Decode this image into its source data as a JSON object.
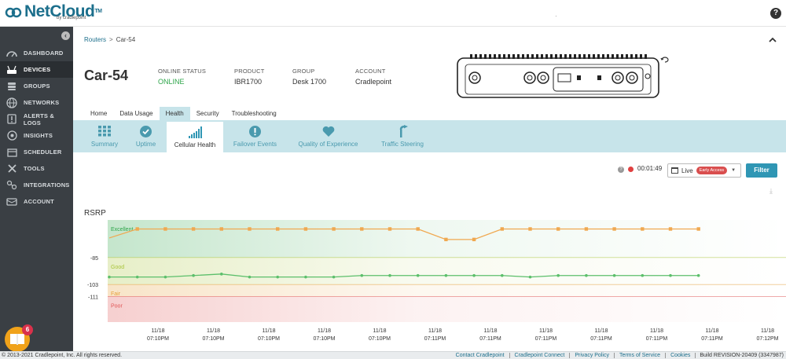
{
  "app": {
    "logo_text": "NetCloud",
    "logo_tm": "TM",
    "logo_sub": "by cradlepoint",
    "help_label": "?",
    "top_mark": "·"
  },
  "sidebar": {
    "collapse_label": "‹",
    "items": [
      {
        "label": "DASHBOARD",
        "icon": "dashboard-icon",
        "active": false
      },
      {
        "label": "DEVICES",
        "icon": "devices-icon",
        "active": true
      },
      {
        "label": "GROUPS",
        "icon": "groups-icon",
        "active": false
      },
      {
        "label": "NETWORKS",
        "icon": "networks-icon",
        "active": false
      },
      {
        "label": "ALERTS & LOGS",
        "icon": "alerts-icon",
        "active": false
      },
      {
        "label": "INSIGHTS",
        "icon": "insights-icon",
        "active": false
      },
      {
        "label": "SCHEDULER",
        "icon": "scheduler-icon",
        "active": false
      },
      {
        "label": "TOOLS",
        "icon": "tools-icon",
        "active": false
      },
      {
        "label": "INTEGRATIONS",
        "icon": "integrations-icon",
        "active": false
      },
      {
        "label": "ACCOUNT",
        "icon": "account-icon",
        "active": false
      }
    ],
    "help_badge": "6"
  },
  "breadcrumb": {
    "parent": "Routers",
    "separator": ">",
    "current": "Car-54"
  },
  "collapse_icon": "^",
  "device": {
    "name": "Car-54",
    "online_status_label": "ONLINE STATUS",
    "online_status_value": "ONLINE",
    "product_label": "PRODUCT",
    "product_value": "IBR1700",
    "group_label": "GROUP",
    "group_value": "Desk 1700",
    "account_label": "ACCOUNT",
    "account_value": "Cradlepoint",
    "status_color": "#2ea54a"
  },
  "tabs": [
    {
      "label": "Home",
      "active": false
    },
    {
      "label": "Data Usage",
      "active": false
    },
    {
      "label": "Health",
      "active": true
    },
    {
      "label": "Security",
      "active": false
    },
    {
      "label": "Troubleshooting",
      "active": false
    }
  ],
  "subtabs": [
    {
      "label": "Summary",
      "icon": "grid-icon",
      "active": false
    },
    {
      "label": "Uptime",
      "icon": "check-circle-icon",
      "active": false
    },
    {
      "label": "Cellular Health",
      "icon": "signal-bars-icon",
      "active": true
    },
    {
      "label": "Failover Events",
      "icon": "alert-circle-icon",
      "active": false
    },
    {
      "label": "Quality of Experience",
      "icon": "heart-icon",
      "active": false
    },
    {
      "label": "Traffic Steering",
      "icon": "traffic-steering-icon",
      "active": false
    }
  ],
  "controls": {
    "help_label": "?",
    "timer": "00:01:49",
    "live_label": "Live",
    "early_access": "Early Access",
    "caret": "▼",
    "filter_label": "Filter",
    "download_label": "⤓"
  },
  "chart_data": {
    "type": "line",
    "title": "RSRP",
    "xlabel": "",
    "ylabel": "",
    "y_ticks": [
      -85,
      -103,
      -111
    ],
    "bands": [
      {
        "label": "Excellent",
        "min": -85,
        "max": -60,
        "color": "#2ea54a"
      },
      {
        "label": "Good",
        "min": -103,
        "max": -85,
        "color": "#a9c43a"
      },
      {
        "label": "Fair",
        "min": -111,
        "max": -103,
        "color": "#e6a03b"
      },
      {
        "label": "Poor",
        "min": -128,
        "max": -111,
        "color": "#e05555"
      }
    ],
    "ylim": [
      -128,
      -60
    ],
    "x_ticks": [
      {
        "date": "11/18",
        "time": "07:10PM"
      },
      {
        "date": "11/18",
        "time": "07:10PM"
      },
      {
        "date": "11/18",
        "time": "07:10PM"
      },
      {
        "date": "11/18",
        "time": "07:10PM"
      },
      {
        "date": "11/18",
        "time": "07:10PM"
      },
      {
        "date": "11/18",
        "time": "07:11PM"
      },
      {
        "date": "11/18",
        "time": "07:11PM"
      },
      {
        "date": "11/18",
        "time": "07:11PM"
      },
      {
        "date": "11/18",
        "time": "07:11PM"
      },
      {
        "date": "11/18",
        "time": "07:11PM"
      },
      {
        "date": "11/18",
        "time": "07:11PM"
      },
      {
        "date": "11/18",
        "time": "07:12PM"
      }
    ],
    "series": [
      {
        "color": "#f0a850",
        "values": [
          -72,
          -66,
          -66,
          -66,
          -66,
          -66,
          -66,
          -66,
          -66,
          -66,
          -66,
          -66,
          -73,
          -73,
          -66,
          -66,
          -66,
          -66,
          -66,
          -66,
          -66,
          -66
        ]
      },
      {
        "color": "#5cbf6b",
        "values": [
          -98,
          -98,
          -98,
          -97,
          -96,
          -98,
          -98,
          -98,
          -98,
          -97,
          -97,
          -97,
          -97,
          -97,
          -97,
          -98,
          -97,
          -97,
          -97,
          -97,
          -97,
          -97
        ]
      }
    ]
  },
  "footer": {
    "copyright": "© 2013-2021 Cradlepoint, Inc. All rights reserved.",
    "links": [
      "Contact Cradlepoint",
      "Cradlepoint Connect",
      "Privacy Policy",
      "Terms of Service",
      "Cookies"
    ],
    "build": "Build REVISION-20409 (3347987)"
  }
}
